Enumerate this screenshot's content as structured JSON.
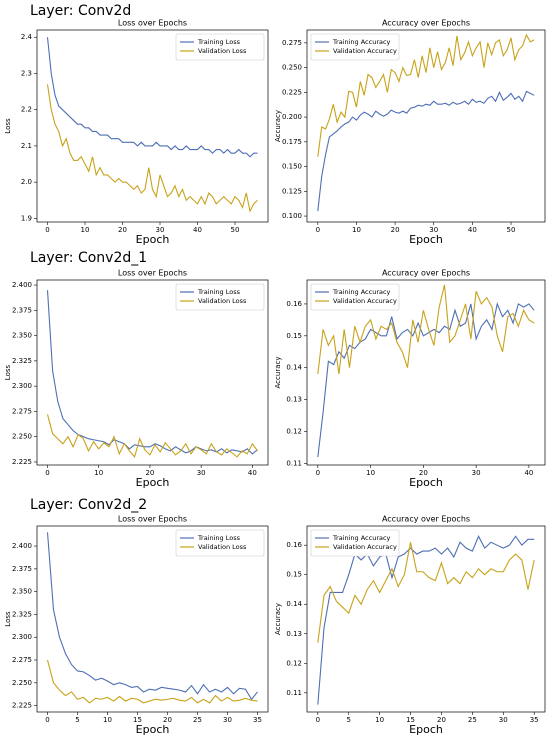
{
  "layers": [
    "Layer: Conv2d",
    "Layer: Conv2d_1",
    "Layer: Conv2d_2"
  ],
  "chart_data": [
    {
      "type": "line",
      "title": "Loss over Epochs",
      "xlabel": "Epoch",
      "ylabel": "Loss",
      "legend": "upper right",
      "x": [
        0,
        1,
        2,
        3,
        4,
        5,
        6,
        7,
        8,
        9,
        10,
        11,
        12,
        13,
        14,
        15,
        16,
        17,
        18,
        19,
        20,
        21,
        22,
        23,
        24,
        25,
        26,
        27,
        28,
        29,
        30,
        31,
        32,
        33,
        34,
        35,
        36,
        37,
        38,
        39,
        40,
        41,
        42,
        43,
        44,
        45,
        46,
        47,
        48,
        49,
        50,
        51,
        52,
        53,
        54,
        55,
        56
      ],
      "xlim": [
        -2.8,
        58.8
      ],
      "xticks": [
        0,
        10,
        20,
        30,
        40,
        50
      ],
      "ylim": [
        1.89,
        2.42
      ],
      "yticks": [
        {
          "value": 1.9,
          "label": "1.9"
        },
        {
          "value": 2.0,
          "label": "2.0"
        },
        {
          "value": 2.1,
          "label": "2.1"
        },
        {
          "value": 2.2,
          "label": "2.2"
        },
        {
          "value": 2.3,
          "label": "2.3"
        },
        {
          "value": 2.4,
          "label": "2.4"
        }
      ],
      "series": [
        {
          "name": "Training Loss",
          "color": "#4e6fb5",
          "values": [
            2.4,
            2.3,
            2.24,
            2.21,
            2.2,
            2.19,
            2.18,
            2.17,
            2.16,
            2.16,
            2.15,
            2.15,
            2.14,
            2.14,
            2.13,
            2.13,
            2.13,
            2.12,
            2.12,
            2.12,
            2.11,
            2.11,
            2.11,
            2.11,
            2.1,
            2.11,
            2.1,
            2.1,
            2.1,
            2.11,
            2.1,
            2.1,
            2.1,
            2.09,
            2.1,
            2.09,
            2.09,
            2.1,
            2.09,
            2.09,
            2.09,
            2.1,
            2.09,
            2.09,
            2.08,
            2.09,
            2.09,
            2.08,
            2.09,
            2.08,
            2.08,
            2.09,
            2.08,
            2.08,
            2.07,
            2.08,
            2.08
          ]
        },
        {
          "name": "Validation Loss",
          "color": "#c8a21a",
          "values": [
            2.27,
            2.2,
            2.16,
            2.14,
            2.1,
            2.12,
            2.08,
            2.06,
            2.06,
            2.07,
            2.05,
            2.03,
            2.07,
            2.02,
            2.04,
            2.02,
            2.02,
            2.01,
            2.0,
            2.01,
            2.0,
            2.0,
            1.99,
            1.98,
            1.99,
            1.97,
            1.98,
            2.04,
            1.98,
            1.96,
            2.02,
            1.99,
            1.96,
            1.97,
            1.99,
            1.96,
            1.98,
            1.95,
            1.96,
            1.95,
            1.94,
            1.96,
            1.94,
            1.97,
            1.96,
            1.94,
            1.95,
            1.96,
            1.95,
            1.94,
            1.96,
            1.95,
            1.93,
            1.97,
            1.92,
            1.94,
            1.95
          ]
        }
      ]
    },
    {
      "type": "line",
      "title": "Accuracy over Epochs",
      "xlabel": "Epoch",
      "ylabel": "Accuracy",
      "legend": "upper left",
      "x": [
        0,
        1,
        2,
        3,
        4,
        5,
        6,
        7,
        8,
        9,
        10,
        11,
        12,
        13,
        14,
        15,
        16,
        17,
        18,
        19,
        20,
        21,
        22,
        23,
        24,
        25,
        26,
        27,
        28,
        29,
        30,
        31,
        32,
        33,
        34,
        35,
        36,
        37,
        38,
        39,
        40,
        41,
        42,
        43,
        44,
        45,
        46,
        47,
        48,
        49,
        50,
        51,
        52,
        53,
        54,
        55,
        56
      ],
      "xlim": [
        -2.8,
        58.8
      ],
      "xticks": [
        0,
        10,
        20,
        30,
        40,
        50
      ],
      "ylim": [
        0.094,
        0.288
      ],
      "yticks": [
        {
          "value": 0.1,
          "label": "0.100"
        },
        {
          "value": 0.125,
          "label": "0.125"
        },
        {
          "value": 0.15,
          "label": "0.150"
        },
        {
          "value": 0.175,
          "label": "0.175"
        },
        {
          "value": 0.2,
          "label": "0.200"
        },
        {
          "value": 0.225,
          "label": "0.225"
        },
        {
          "value": 0.25,
          "label": "0.250"
        },
        {
          "value": 0.275,
          "label": "0.275"
        }
      ],
      "series": [
        {
          "name": "Training Accuracy",
          "color": "#4e6fb5",
          "values": [
            0.105,
            0.14,
            0.162,
            0.18,
            0.183,
            0.186,
            0.19,
            0.193,
            0.195,
            0.2,
            0.197,
            0.202,
            0.205,
            0.203,
            0.2,
            0.206,
            0.203,
            0.201,
            0.203,
            0.207,
            0.205,
            0.204,
            0.206,
            0.204,
            0.209,
            0.21,
            0.212,
            0.211,
            0.213,
            0.212,
            0.216,
            0.213,
            0.213,
            0.214,
            0.212,
            0.215,
            0.213,
            0.214,
            0.216,
            0.213,
            0.218,
            0.215,
            0.216,
            0.214,
            0.219,
            0.221,
            0.216,
            0.225,
            0.217,
            0.22,
            0.224,
            0.218,
            0.221,
            0.216,
            0.226,
            0.224,
            0.222
          ]
        },
        {
          "name": "Validation Accuracy",
          "color": "#c8a21a",
          "values": [
            0.16,
            0.19,
            0.188,
            0.198,
            0.213,
            0.195,
            0.205,
            0.2,
            0.226,
            0.225,
            0.21,
            0.236,
            0.222,
            0.243,
            0.24,
            0.23,
            0.236,
            0.243,
            0.225,
            0.248,
            0.245,
            0.236,
            0.25,
            0.242,
            0.243,
            0.258,
            0.24,
            0.262,
            0.245,
            0.27,
            0.25,
            0.266,
            0.248,
            0.255,
            0.27,
            0.252,
            0.282,
            0.258,
            0.265,
            0.276,
            0.262,
            0.27,
            0.276,
            0.25,
            0.275,
            0.263,
            0.275,
            0.278,
            0.262,
            0.268,
            0.28,
            0.258,
            0.268,
            0.272,
            0.283,
            0.276,
            0.278
          ]
        }
      ]
    },
    {
      "type": "line",
      "title": "Loss over Epochs",
      "xlabel": "Epoch",
      "ylabel": "Loss",
      "legend": "upper right",
      "x": [
        0,
        1,
        2,
        3,
        4,
        5,
        6,
        7,
        8,
        9,
        10,
        11,
        12,
        13,
        14,
        15,
        16,
        17,
        18,
        19,
        20,
        21,
        22,
        23,
        24,
        25,
        26,
        27,
        28,
        29,
        30,
        31,
        32,
        33,
        34,
        35,
        36,
        37,
        38,
        39,
        40,
        41
      ],
      "xlim": [
        -2.05,
        43.05
      ],
      "xticks": [
        0,
        10,
        20,
        30,
        40
      ],
      "ylim": [
        2.222,
        2.405
      ],
      "yticks": [
        {
          "value": 2.225,
          "label": "2.225"
        },
        {
          "value": 2.25,
          "label": "2.250"
        },
        {
          "value": 2.275,
          "label": "2.275"
        },
        {
          "value": 2.3,
          "label": "2.300"
        },
        {
          "value": 2.325,
          "label": "2.325"
        },
        {
          "value": 2.35,
          "label": "2.350"
        },
        {
          "value": 2.375,
          "label": "2.375"
        },
        {
          "value": 2.4,
          "label": "2.400"
        }
      ],
      "series": [
        {
          "name": "Training Loss",
          "color": "#4e6fb5",
          "values": [
            2.395,
            2.315,
            2.285,
            2.268,
            2.262,
            2.256,
            2.252,
            2.25,
            2.248,
            2.247,
            2.246,
            2.245,
            2.242,
            2.247,
            2.245,
            2.243,
            2.238,
            2.242,
            2.241,
            2.24,
            2.24,
            2.243,
            2.241,
            2.238,
            2.236,
            2.24,
            2.237,
            2.234,
            2.236,
            2.24,
            2.238,
            2.236,
            2.237,
            2.235,
            2.238,
            2.234,
            2.237,
            2.236,
            2.235,
            2.238,
            2.233,
            2.237
          ]
        },
        {
          "name": "Validation Loss",
          "color": "#c8a21a",
          "values": [
            2.272,
            2.253,
            2.248,
            2.243,
            2.25,
            2.24,
            2.252,
            2.248,
            2.236,
            2.245,
            2.238,
            2.244,
            2.24,
            2.25,
            2.233,
            2.243,
            2.236,
            2.23,
            2.248,
            2.237,
            2.232,
            2.242,
            2.235,
            2.244,
            2.238,
            2.232,
            2.236,
            2.243,
            2.233,
            2.24,
            2.237,
            2.233,
            2.243,
            2.235,
            2.232,
            2.238,
            2.234,
            2.23,
            2.236,
            2.233,
            2.243,
            2.236
          ]
        }
      ]
    },
    {
      "type": "line",
      "title": "Accuracy over Epochs",
      "xlabel": "Epoch",
      "ylabel": "Accuracy",
      "legend": "upper left",
      "x": [
        0,
        1,
        2,
        3,
        4,
        5,
        6,
        7,
        8,
        9,
        10,
        11,
        12,
        13,
        14,
        15,
        16,
        17,
        18,
        19,
        20,
        21,
        22,
        23,
        24,
        25,
        26,
        27,
        28,
        29,
        30,
        31,
        32,
        33,
        34,
        35,
        36,
        37,
        38,
        39,
        40,
        41
      ],
      "xlim": [
        -2.05,
        43.05
      ],
      "xticks": [
        0,
        10,
        20,
        30,
        40
      ],
      "ylim": [
        0.1095,
        0.1675
      ],
      "yticks": [
        0.11,
        0.12,
        0.13,
        0.14,
        0.15,
        0.16
      ],
      "series": [
        {
          "name": "Training Accuracy",
          "color": "#4e6fb5",
          "values": [
            0.112,
            0.126,
            0.142,
            0.141,
            0.145,
            0.143,
            0.147,
            0.146,
            0.148,
            0.149,
            0.152,
            0.151,
            0.15,
            0.15,
            0.156,
            0.149,
            0.151,
            0.152,
            0.15,
            0.154,
            0.15,
            0.151,
            0.152,
            0.151,
            0.153,
            0.152,
            0.158,
            0.153,
            0.154,
            0.16,
            0.149,
            0.153,
            0.155,
            0.152,
            0.16,
            0.156,
            0.158,
            0.154,
            0.16,
            0.159,
            0.16,
            0.158
          ]
        },
        {
          "name": "Validation Accuracy",
          "color": "#c8a21a",
          "values": [
            0.138,
            0.152,
            0.147,
            0.15,
            0.138,
            0.152,
            0.14,
            0.153,
            0.148,
            0.153,
            0.155,
            0.149,
            0.153,
            0.152,
            0.154,
            0.148,
            0.145,
            0.14,
            0.155,
            0.148,
            0.158,
            0.152,
            0.147,
            0.159,
            0.166,
            0.148,
            0.15,
            0.155,
            0.16,
            0.149,
            0.164,
            0.16,
            0.162,
            0.159,
            0.15,
            0.145,
            0.156,
            0.157,
            0.153,
            0.158,
            0.155,
            0.154
          ]
        }
      ]
    },
    {
      "type": "line",
      "title": "Loss over Epochs",
      "xlabel": "Epoch",
      "ylabel": "Loss",
      "legend": "upper right",
      "x": [
        0,
        1,
        2,
        3,
        4,
        5,
        6,
        7,
        8,
        9,
        10,
        11,
        12,
        13,
        14,
        15,
        16,
        17,
        18,
        19,
        20,
        21,
        22,
        23,
        24,
        25,
        26,
        27,
        28,
        29,
        30,
        31,
        32,
        33,
        34,
        35
      ],
      "xlim": [
        -1.75,
        36.75
      ],
      "xticks": [
        0,
        5,
        10,
        15,
        20,
        25,
        30,
        35
      ],
      "ylim": [
        2.218,
        2.422
      ],
      "yticks": [
        {
          "value": 2.225,
          "label": "2.225"
        },
        {
          "value": 2.25,
          "label": "2.250"
        },
        {
          "value": 2.275,
          "label": "2.275"
        },
        {
          "value": 2.3,
          "label": "2.300"
        },
        {
          "value": 2.325,
          "label": "2.325"
        },
        {
          "value": 2.35,
          "label": "2.350"
        },
        {
          "value": 2.375,
          "label": "2.375"
        },
        {
          "value": 2.4,
          "label": "2.400"
        }
      ],
      "series": [
        {
          "name": "Training Loss",
          "color": "#4e6fb5",
          "values": [
            2.415,
            2.33,
            2.3,
            2.282,
            2.27,
            2.263,
            2.262,
            2.258,
            2.253,
            2.255,
            2.252,
            2.248,
            2.25,
            2.248,
            2.245,
            2.246,
            2.24,
            2.243,
            2.242,
            2.245,
            2.244,
            2.243,
            2.242,
            2.24,
            2.247,
            2.238,
            2.248,
            2.24,
            2.243,
            2.24,
            2.245,
            2.238,
            2.244,
            2.243,
            2.232,
            2.24
          ]
        },
        {
          "name": "Validation Loss",
          "color": "#c8a21a",
          "values": [
            2.275,
            2.25,
            2.242,
            2.236,
            2.24,
            2.232,
            2.234,
            2.228,
            2.233,
            2.232,
            2.234,
            2.23,
            2.235,
            2.23,
            2.233,
            2.232,
            2.228,
            2.23,
            2.232,
            2.231,
            2.232,
            2.233,
            2.231,
            2.23,
            2.234,
            2.228,
            2.232,
            2.228,
            2.236,
            2.23,
            2.234,
            2.23,
            2.231,
            2.233,
            2.231,
            2.23
          ]
        }
      ]
    },
    {
      "type": "line",
      "title": "Accuracy over Epochs",
      "xlabel": "Epoch",
      "ylabel": "Accuracy",
      "legend": "upper left",
      "x": [
        0,
        1,
        2,
        3,
        4,
        5,
        6,
        7,
        8,
        9,
        10,
        11,
        12,
        13,
        14,
        15,
        16,
        17,
        18,
        19,
        20,
        21,
        22,
        23,
        24,
        25,
        26,
        27,
        28,
        29,
        30,
        31,
        32,
        33,
        34,
        35
      ],
      "xlim": [
        -1.75,
        36.75
      ],
      "xticks": [
        0,
        5,
        10,
        15,
        20,
        25,
        30,
        35
      ],
      "ylim": [
        0.1035,
        0.1665
      ],
      "yticks": [
        0.11,
        0.12,
        0.13,
        0.14,
        0.15,
        0.16
      ],
      "series": [
        {
          "name": "Training Accuracy",
          "color": "#4e6fb5",
          "values": [
            0.106,
            0.132,
            0.144,
            0.144,
            0.144,
            0.15,
            0.157,
            0.155,
            0.157,
            0.153,
            0.156,
            0.157,
            0.149,
            0.156,
            0.157,
            0.159,
            0.157,
            0.158,
            0.158,
            0.159,
            0.157,
            0.159,
            0.156,
            0.161,
            0.159,
            0.158,
            0.163,
            0.159,
            0.161,
            0.16,
            0.159,
            0.16,
            0.163,
            0.16,
            0.162,
            0.162
          ]
        },
        {
          "name": "Validation Accuracy",
          "color": "#c8a21a",
          "values": [
            0.127,
            0.143,
            0.146,
            0.141,
            0.139,
            0.137,
            0.143,
            0.14,
            0.145,
            0.148,
            0.144,
            0.148,
            0.152,
            0.146,
            0.15,
            0.161,
            0.151,
            0.151,
            0.149,
            0.148,
            0.154,
            0.147,
            0.149,
            0.147,
            0.151,
            0.149,
            0.152,
            0.15,
            0.152,
            0.151,
            0.151,
            0.155,
            0.157,
            0.155,
            0.145,
            0.155
          ]
        }
      ]
    }
  ]
}
